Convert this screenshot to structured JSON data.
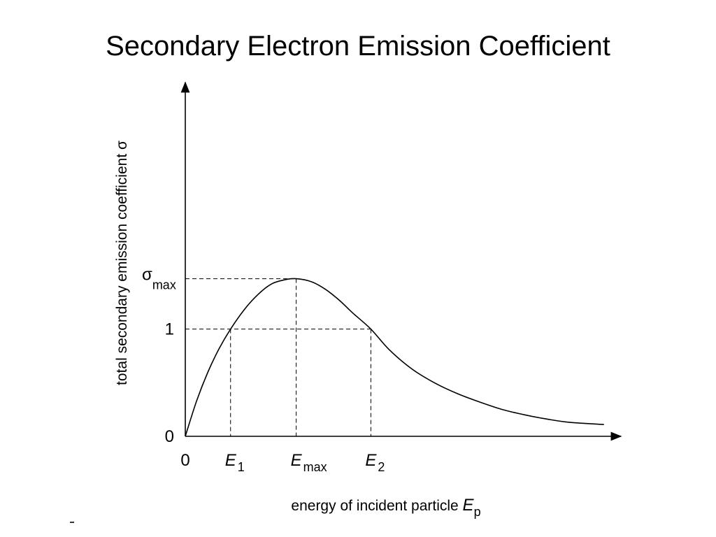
{
  "slide": {
    "title": "Secondary Electron Emission Coefficient"
  },
  "chart_data": {
    "type": "line",
    "ylabel": "total secondary emission coefficient σ",
    "xlabel_main": "energy of incident particle ",
    "xlabel_var": "E",
    "xlabel_sub": "p",
    "y_ticks": [
      {
        "value": 0,
        "main": "0",
        "sub": ""
      },
      {
        "value": 1,
        "main": "1",
        "sub": ""
      },
      {
        "value": 1.47,
        "main": "σ",
        "sub": "max"
      }
    ],
    "x_ticks": [
      {
        "value": 0,
        "main": "0",
        "sub": ""
      },
      {
        "value": 1,
        "main": "E",
        "sub": "1"
      },
      {
        "value": 2.45,
        "main": "E",
        "sub": "max"
      },
      {
        "value": 4.1,
        "main": "E",
        "sub": "2"
      }
    ],
    "key_points": {
      "E1": 1,
      "Emax": 2.45,
      "E2": 4.1,
      "sigma_max": 1.47,
      "unity": 1
    },
    "xlim": [
      0,
      9.5
    ],
    "ylim": [
      0,
      3.3
    ],
    "series": [
      {
        "x": [
          0,
          0.25,
          0.5,
          0.75,
          1.0,
          1.3,
          1.6,
          1.9,
          2.2,
          2.45,
          2.8,
          3.1,
          3.4,
          3.7,
          4.1,
          4.5,
          5.0,
          5.5,
          6.0,
          6.5,
          7.0,
          7.5,
          8.0,
          8.5,
          9.25
        ],
        "y": [
          0,
          0.33,
          0.6,
          0.82,
          1.0,
          1.18,
          1.32,
          1.42,
          1.46,
          1.47,
          1.44,
          1.37,
          1.27,
          1.15,
          1.0,
          0.81,
          0.63,
          0.5,
          0.4,
          0.32,
          0.25,
          0.2,
          0.16,
          0.13,
          0.11
        ]
      }
    ]
  }
}
